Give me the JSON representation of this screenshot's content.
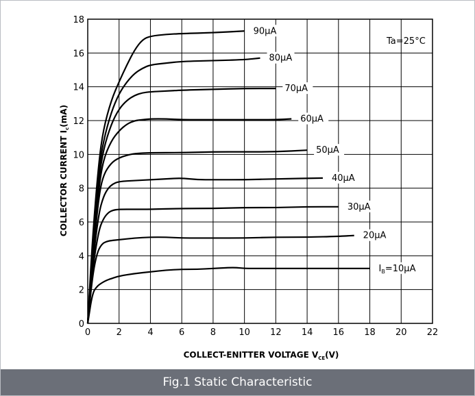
{
  "caption": "Fig.1 Static Characteristic",
  "chart_data": {
    "type": "line",
    "title": "",
    "xlabel": "COLLECT-ENITTER VOLTAGE",
    "xlabel_sym": "V",
    "xlabel_sub": "CE",
    "xlabel_unit": "(V)",
    "ylabel": "COLLECTOR CURRENT",
    "ylabel_sym": "I",
    "ylabel_sub": "c",
    "ylabel_unit": "(mA)",
    "xlim": [
      0,
      22
    ],
    "ylim": [
      0,
      18
    ],
    "x_ticks": [
      "0",
      "2",
      "4",
      "6",
      "8",
      "10",
      "12",
      "14",
      "16",
      "18",
      "20",
      "22"
    ],
    "y_ticks": [
      "0",
      "2",
      "4",
      "6",
      "8",
      "10",
      "12",
      "14",
      "16",
      "18"
    ],
    "grid": true,
    "annotation": "Ta=25°C",
    "line_color": "#000000",
    "series": [
      {
        "name": "90μA",
        "x": [
          0,
          0.3,
          0.7,
          1,
          1.5,
          2,
          2.5,
          3,
          3.5,
          4,
          5,
          6,
          8,
          10
        ],
        "y": [
          0,
          5,
          9.5,
          11.5,
          13.2,
          14.3,
          15.3,
          16.2,
          16.8,
          17.0,
          17.1,
          17.15,
          17.2,
          17.3
        ]
      },
      {
        "name": "80μA",
        "x": [
          0,
          0.3,
          0.7,
          1,
          1.5,
          2,
          2.5,
          3,
          3.5,
          4,
          5,
          6,
          8,
          10,
          11
        ],
        "y": [
          0,
          4.5,
          9,
          10.8,
          12.5,
          13.6,
          14.3,
          14.8,
          15.1,
          15.3,
          15.4,
          15.5,
          15.55,
          15.6,
          15.7
        ]
      },
      {
        "name": "70μA",
        "x": [
          0,
          0.3,
          0.7,
          1,
          1.5,
          2,
          2.5,
          3,
          3.5,
          4,
          5,
          6,
          8,
          10,
          12
        ],
        "y": [
          0,
          4.3,
          8.5,
          10.3,
          11.8,
          12.7,
          13.2,
          13.5,
          13.65,
          13.7,
          13.75,
          13.8,
          13.85,
          13.9,
          13.9
        ]
      },
      {
        "name": "60μA",
        "x": [
          0,
          0.3,
          0.7,
          1,
          1.5,
          2,
          2.5,
          3,
          3.5,
          4,
          5,
          6,
          8,
          10,
          12,
          13
        ],
        "y": [
          0,
          4,
          8,
          9.7,
          10.8,
          11.4,
          11.8,
          12.0,
          12.05,
          12.1,
          12.1,
          12.05,
          12.05,
          12.05,
          12.05,
          12.1
        ]
      },
      {
        "name": "50μA",
        "x": [
          0,
          0.3,
          0.7,
          1,
          1.5,
          2,
          2.5,
          3,
          4,
          6,
          8,
          10,
          12,
          14
        ],
        "y": [
          0,
          3.7,
          7.5,
          8.8,
          9.5,
          9.8,
          9.95,
          10.05,
          10.1,
          10.1,
          10.15,
          10.15,
          10.15,
          10.25
        ]
      },
      {
        "name": "40μA",
        "x": [
          0,
          0.3,
          0.7,
          1,
          1.3,
          1.6,
          2,
          3,
          4,
          5,
          6,
          7,
          8,
          10,
          12,
          15
        ],
        "y": [
          0,
          3.5,
          6.5,
          7.5,
          8.0,
          8.25,
          8.4,
          8.45,
          8.5,
          8.55,
          8.6,
          8.5,
          8.5,
          8.5,
          8.55,
          8.6
        ]
      },
      {
        "name": "30μA",
        "x": [
          0,
          0.3,
          0.7,
          1,
          1.3,
          1.6,
          2,
          3,
          4,
          6,
          8,
          10,
          12,
          14,
          16
        ],
        "y": [
          0,
          3.2,
          5.5,
          6.2,
          6.55,
          6.7,
          6.75,
          6.75,
          6.75,
          6.8,
          6.8,
          6.85,
          6.85,
          6.9,
          6.9
        ]
      },
      {
        "name": "20μA",
        "x": [
          0,
          0.3,
          0.6,
          0.9,
          1.2,
          1.5,
          2,
          3,
          4,
          5,
          6,
          8,
          10,
          12,
          14,
          16,
          17
        ],
        "y": [
          0,
          2.8,
          4.2,
          4.7,
          4.85,
          4.9,
          4.95,
          5.05,
          5.1,
          5.1,
          5.05,
          5.05,
          5.05,
          5.1,
          5.1,
          5.15,
          5.2
        ]
      },
      {
        "name": "IB=10μA",
        "label_main": "I",
        "label_sub": "B",
        "label_rest": "=10μA",
        "x": [
          0,
          0.3,
          0.6,
          0.9,
          1.2,
          1.5,
          2,
          3,
          4,
          5,
          6,
          7,
          8,
          9,
          9.5,
          10,
          11,
          12,
          14,
          16,
          18
        ],
        "y": [
          0,
          1.8,
          2.2,
          2.4,
          2.55,
          2.65,
          2.8,
          2.95,
          3.05,
          3.15,
          3.2,
          3.2,
          3.25,
          3.3,
          3.3,
          3.25,
          3.25,
          3.25,
          3.25,
          3.25,
          3.25
        ]
      }
    ]
  }
}
